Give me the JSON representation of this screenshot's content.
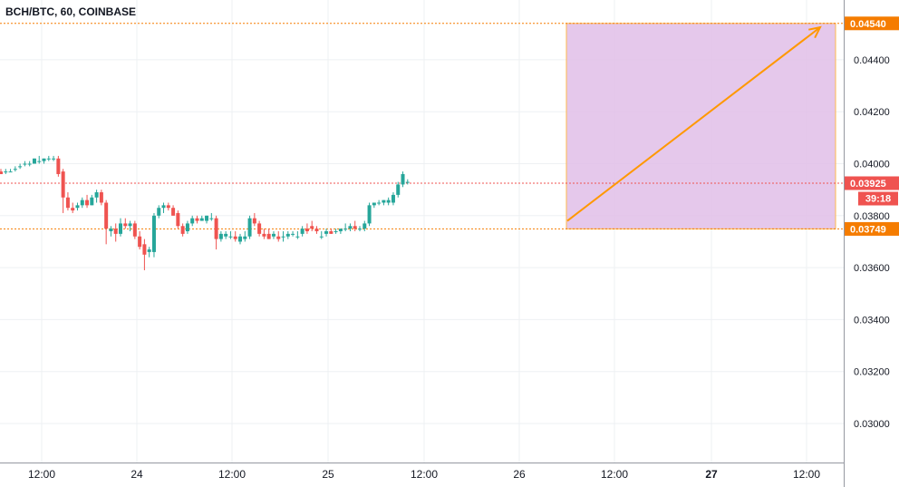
{
  "chart_data": {
    "type": "candlestick",
    "title": "BCH/BTC, 60, COINBASE",
    "y_ticks": [
      "0.04400",
      "0.04200",
      "0.04000",
      "0.03800",
      "0.03600",
      "0.03400",
      "0.03200",
      "0.03000"
    ],
    "y_tick_values": [
      0.044,
      0.042,
      0.04,
      0.038,
      0.036,
      0.034,
      0.032,
      0.03
    ],
    "x_ticks": [
      {
        "label": "12:00",
        "bold": false
      },
      {
        "label": "24",
        "bold": false
      },
      {
        "label": "12:00",
        "bold": false
      },
      {
        "label": "25",
        "bold": false
      },
      {
        "label": "12:00",
        "bold": false
      },
      {
        "label": "26",
        "bold": false
      },
      {
        "label": "12:00",
        "bold": false
      },
      {
        "label": "27",
        "bold": true
      },
      {
        "label": "12:00",
        "bold": false
      }
    ],
    "y_range": [
      0.0285,
      0.0463
    ],
    "price_lines": [
      {
        "label": "0.04540",
        "value": 0.0454,
        "color": "#f57c00"
      },
      {
        "label": "0.03925",
        "value": 0.03925,
        "color": "#ef5350",
        "countdown": "39:18"
      },
      {
        "label": "0.03749",
        "value": 0.03749,
        "color": "#f57c00"
      }
    ],
    "up_color": "#26a69a",
    "down_color": "#ef5350",
    "projection_box_color": "#e1bee7",
    "arrow_color": "#ff9800",
    "candles": [
      [
        0.0397,
        0.0398,
        0.0396,
        0.0396
      ],
      [
        0.0397,
        0.0398,
        0.0396,
        0.0397
      ],
      [
        0.0397,
        0.0398,
        0.0397,
        0.0397
      ],
      [
        0.0398,
        0.0399,
        0.0397,
        0.0398
      ],
      [
        0.0399,
        0.04,
        0.0398,
        0.0399
      ],
      [
        0.04,
        0.0401,
        0.0399,
        0.04
      ],
      [
        0.04,
        0.0401,
        0.0399,
        0.04
      ],
      [
        0.04,
        0.0402,
        0.04,
        0.0402
      ],
      [
        0.0401,
        0.0403,
        0.04,
        0.0401
      ],
      [
        0.0401,
        0.0402,
        0.04,
        0.0402
      ],
      [
        0.0402,
        0.0403,
        0.0401,
        0.0402
      ],
      [
        0.0402,
        0.0403,
        0.0401,
        0.0402
      ],
      [
        0.0402,
        0.0403,
        0.0395,
        0.0396
      ],
      [
        0.0397,
        0.0398,
        0.0381,
        0.0387
      ],
      [
        0.0387,
        0.0389,
        0.0382,
        0.0383
      ],
      [
        0.0383,
        0.0385,
        0.0381,
        0.0382
      ],
      [
        0.0383,
        0.0385,
        0.0382,
        0.0384
      ],
      [
        0.0384,
        0.0387,
        0.0383,
        0.0386
      ],
      [
        0.0386,
        0.0388,
        0.0383,
        0.0384
      ],
      [
        0.0384,
        0.0388,
        0.0384,
        0.0387
      ],
      [
        0.0387,
        0.039,
        0.0385,
        0.0389
      ],
      [
        0.0389,
        0.039,
        0.0384,
        0.0385
      ],
      [
        0.0385,
        0.0386,
        0.0369,
        0.0375
      ],
      [
        0.0374,
        0.0376,
        0.0372,
        0.0375
      ],
      [
        0.0375,
        0.0377,
        0.037,
        0.0373
      ],
      [
        0.0373,
        0.0379,
        0.0372,
        0.0377
      ],
      [
        0.0377,
        0.0379,
        0.0375,
        0.0376
      ],
      [
        0.0376,
        0.0378,
        0.0374,
        0.0377
      ],
      [
        0.0377,
        0.0378,
        0.0371,
        0.0372
      ],
      [
        0.0372,
        0.0374,
        0.0367,
        0.0368
      ],
      [
        0.0369,
        0.0371,
        0.0359,
        0.0365
      ],
      [
        0.0366,
        0.0368,
        0.0364,
        0.0367
      ],
      [
        0.0366,
        0.0381,
        0.0364,
        0.038
      ],
      [
        0.038,
        0.0384,
        0.0379,
        0.0383
      ],
      [
        0.0383,
        0.0385,
        0.0381,
        0.0384
      ],
      [
        0.0384,
        0.0385,
        0.0382,
        0.0383
      ],
      [
        0.0383,
        0.0384,
        0.038,
        0.038
      ],
      [
        0.0381,
        0.0382,
        0.0375,
        0.0376
      ],
      [
        0.0376,
        0.0377,
        0.0372,
        0.0373
      ],
      [
        0.0374,
        0.0378,
        0.0373,
        0.0377
      ],
      [
        0.0377,
        0.038,
        0.0376,
        0.0379
      ],
      [
        0.0379,
        0.038,
        0.0377,
        0.0378
      ],
      [
        0.0378,
        0.038,
        0.0378,
        0.0379
      ],
      [
        0.0378,
        0.038,
        0.0377,
        0.038
      ],
      [
        0.0379,
        0.0381,
        0.0378,
        0.0379
      ],
      [
        0.0379,
        0.038,
        0.0367,
        0.0371
      ],
      [
        0.0371,
        0.0374,
        0.037,
        0.0373
      ],
      [
        0.0372,
        0.0374,
        0.0371,
        0.0373
      ],
      [
        0.0372,
        0.0374,
        0.0371,
        0.0372
      ],
      [
        0.0372,
        0.0374,
        0.037,
        0.0371
      ],
      [
        0.037,
        0.0373,
        0.0369,
        0.0372
      ],
      [
        0.0371,
        0.0374,
        0.037,
        0.0372
      ],
      [
        0.0372,
        0.038,
        0.0371,
        0.0379
      ],
      [
        0.0379,
        0.0381,
        0.0376,
        0.0377
      ],
      [
        0.0377,
        0.0378,
        0.0372,
        0.0373
      ],
      [
        0.0373,
        0.0375,
        0.0371,
        0.0372
      ],
      [
        0.0373,
        0.0375,
        0.0371,
        0.0371
      ],
      [
        0.0372,
        0.0374,
        0.0371,
        0.0373
      ],
      [
        0.0372,
        0.0374,
        0.037,
        0.0371
      ],
      [
        0.0372,
        0.0374,
        0.037,
        0.0372
      ],
      [
        0.0372,
        0.0374,
        0.0371,
        0.0373
      ],
      [
        0.0373,
        0.0374,
        0.0372,
        0.0373
      ],
      [
        0.0372,
        0.0374,
        0.0371,
        0.0372
      ],
      [
        0.0373,
        0.0376,
        0.0372,
        0.0375
      ],
      [
        0.0375,
        0.0377,
        0.0373,
        0.0374
      ],
      [
        0.0376,
        0.0378,
        0.0374,
        0.0375
      ],
      [
        0.0375,
        0.0376,
        0.0373,
        0.0374
      ],
      [
        0.0372,
        0.0374,
        0.0371,
        0.0372
      ],
      [
        0.0373,
        0.0375,
        0.0372,
        0.0374
      ],
      [
        0.0374,
        0.0375,
        0.0373,
        0.0373
      ],
      [
        0.0374,
        0.0375,
        0.0373,
        0.0374
      ],
      [
        0.0374,
        0.0375,
        0.0373,
        0.0375
      ],
      [
        0.0375,
        0.0377,
        0.0374,
        0.0375
      ],
      [
        0.0375,
        0.0377,
        0.0374,
        0.0376
      ],
      [
        0.0376,
        0.0378,
        0.0374,
        0.0375
      ],
      [
        0.0375,
        0.0376,
        0.0374,
        0.0375
      ],
      [
        0.0375,
        0.0378,
        0.0374,
        0.0377
      ],
      [
        0.0377,
        0.0385,
        0.0376,
        0.0384
      ],
      [
        0.0384,
        0.0385,
        0.0383,
        0.0385
      ],
      [
        0.0385,
        0.0386,
        0.0384,
        0.0385
      ],
      [
        0.0385,
        0.0386,
        0.0384,
        0.0386
      ],
      [
        0.0385,
        0.0387,
        0.0384,
        0.0386
      ],
      [
        0.0385,
        0.0389,
        0.0384,
        0.0388
      ],
      [
        0.0388,
        0.0393,
        0.0387,
        0.0392
      ],
      [
        0.0392,
        0.0397,
        0.0391,
        0.0396
      ],
      [
        0.0393,
        0.0394,
        0.0392,
        0.0393
      ]
    ]
  }
}
